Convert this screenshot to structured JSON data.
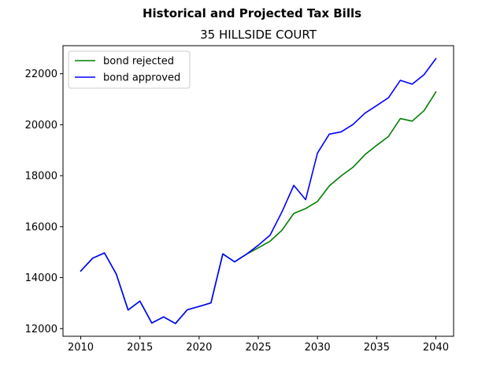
{
  "chart_data": {
    "type": "line",
    "title": "Historical and Projected Tax Bills",
    "subtitle": "35 HILLSIDE COURT",
    "xlabel": "",
    "ylabel": "",
    "xlim": [
      2008.5,
      2041.5
    ],
    "ylim": [
      11700,
      23100
    ],
    "xticks": [
      2010,
      2015,
      2020,
      2025,
      2030,
      2035,
      2040
    ],
    "xtick_labels": [
      "2010",
      "2015",
      "2020",
      "2025",
      "2030",
      "2035",
      "2040"
    ],
    "yticks": [
      12000,
      14000,
      16000,
      18000,
      20000,
      22000
    ],
    "ytick_labels": [
      "12000",
      "14000",
      "16000",
      "18000",
      "20000",
      "22000"
    ],
    "grid": false,
    "legend_position": "top-left",
    "series": [
      {
        "name": "bond rejected",
        "color": "#008000",
        "x": [
          2010,
          2011,
          2012,
          2013,
          2014,
          2015,
          2016,
          2017,
          2018,
          2019,
          2020,
          2021,
          2022,
          2023,
          2024,
          2025,
          2026,
          2027,
          2028,
          2029,
          2030,
          2031,
          2032,
          2033,
          2034,
          2035,
          2036,
          2037,
          2038,
          2039,
          2040
        ],
        "values": [
          14260,
          14760,
          14970,
          14140,
          12730,
          13080,
          12220,
          12460,
          12200,
          12740,
          12870,
          13010,
          14930,
          14620,
          14920,
          15170,
          15430,
          15860,
          16520,
          16710,
          16990,
          17600,
          17990,
          18330,
          18820,
          19190,
          19540,
          20240,
          20140,
          20550,
          21280
        ]
      },
      {
        "name": "bond approved",
        "color": "#0000ff",
        "x": [
          2010,
          2011,
          2012,
          2013,
          2014,
          2015,
          2016,
          2017,
          2018,
          2019,
          2020,
          2021,
          2022,
          2023,
          2024,
          2025,
          2026,
          2027,
          2028,
          2029,
          2030,
          2031,
          2032,
          2033,
          2034,
          2035,
          2036,
          2037,
          2038,
          2039,
          2040
        ],
        "values": [
          14260,
          14760,
          14970,
          14140,
          12730,
          13080,
          12220,
          12460,
          12200,
          12740,
          12870,
          13010,
          14930,
          14620,
          14920,
          15270,
          15670,
          16580,
          17620,
          17060,
          18890,
          19630,
          19720,
          20010,
          20450,
          20750,
          21060,
          21740,
          21590,
          21960,
          22590
        ]
      }
    ]
  }
}
